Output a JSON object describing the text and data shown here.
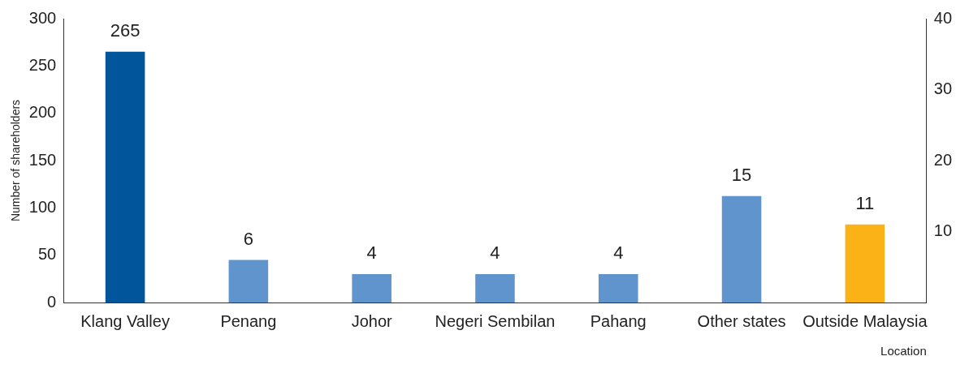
{
  "chart_data": {
    "type": "bar",
    "categories": [
      "Klang Valley",
      "Penang",
      "Johor",
      "Negeri Sembilan",
      "Pahang",
      "Other states",
      "Outside Malaysia"
    ],
    "series": [
      {
        "color": "#00559b",
        "values": [
          265,
          null,
          null,
          null,
          null,
          null,
          null
        ]
      },
      {
        "axis": "y2",
        "colors": [
          null,
          "#5f95cc",
          "#5f95cc",
          "#5f95cc",
          "#5f95cc",
          "#5f95cc",
          "#fbb216"
        ],
        "values": [
          null,
          6,
          4,
          4,
          4,
          15,
          11
        ]
      }
    ],
    "ylabel": "Number of shareholders",
    "xlabel": "Location",
    "ylim": [
      0,
      300
    ],
    "yticks": [
      0,
      50,
      100,
      150,
      200,
      250,
      300
    ],
    "y2lim": [
      0,
      40
    ],
    "y2ticks": [
      10,
      20,
      30,
      40
    ],
    "data_labels": true,
    "grid": false,
    "legend": false
  }
}
